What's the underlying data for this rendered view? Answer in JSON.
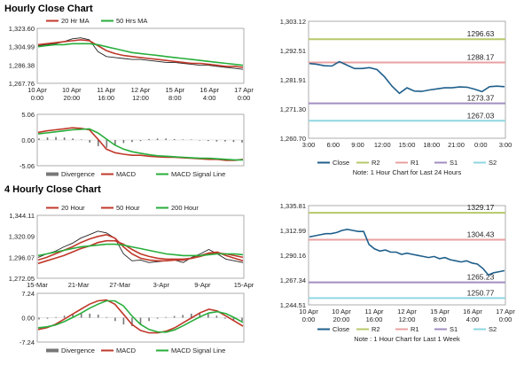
{
  "sections": {
    "hourly": "Hourly Close Chart",
    "four_hourly": "4 Hourly Close Chart"
  },
  "colors": {
    "close": "#1f5f8b",
    "ma20": "#c0392b",
    "ma50": "#27ae3b",
    "ma200": "#27ae3b",
    "r2": "#b5c96a",
    "r1": "#e8a0a0",
    "s1": "#a08ec0",
    "s2": "#8fd6e0",
    "macd": "#c0392b",
    "signal": "#27ae3b",
    "divergence": "#777777",
    "price": "#222222"
  },
  "chart_data": [
    {
      "id": "hourly-price",
      "type": "line",
      "x_ticks": [
        "10 Apr\n0:00",
        "10 Apr\n20:00",
        "11 Apr\n16:00",
        "12 Apr\n12:00",
        "15 Apr\n8:00",
        "16 Apr\n4:00",
        "17 Apr\n0:00"
      ],
      "ylim": [
        1267.76,
        1323.6
      ],
      "y_ticks": [
        "1,323.60",
        "1,304.99",
        "1,286.38",
        "1,267.76"
      ],
      "legend": [
        "20 Hr MA",
        "50 Hrs MA"
      ],
      "series": [
        {
          "name": "price",
          "values": [
            1306,
            1307,
            1308,
            1310,
            1313,
            1314,
            1312,
            1300,
            1295,
            1294,
            1293,
            1292,
            1292,
            1291,
            1290,
            1289,
            1289,
            1288,
            1287,
            1286,
            1286,
            1285,
            1284,
            1283,
            1282
          ]
        },
        {
          "name": "20 Hr MA",
          "values": [
            1307,
            1308,
            1309,
            1310,
            1311,
            1312,
            1311,
            1306,
            1301,
            1298,
            1296,
            1295,
            1294,
            1293,
            1292,
            1291,
            1290,
            1289,
            1288,
            1288,
            1287,
            1286,
            1285,
            1285,
            1284
          ]
        },
        {
          "name": "50 Hrs MA",
          "values": [
            1305,
            1306,
            1307,
            1307,
            1308,
            1308,
            1308,
            1307,
            1305,
            1303,
            1301,
            1299,
            1298,
            1297,
            1296,
            1295,
            1294,
            1293,
            1292,
            1291,
            1290,
            1289,
            1288,
            1287,
            1286
          ]
        }
      ]
    },
    {
      "id": "hourly-macd",
      "type": "line",
      "x_ticks": [
        "",
        "",
        "",
        "",
        "",
        "",
        ""
      ],
      "ylim": [
        -5.06,
        5.06
      ],
      "y_ticks": [
        "5.06",
        "0.00",
        "-5.06"
      ],
      "legend": [
        "Divergence",
        "MACD",
        "MACD Signal Line"
      ],
      "divergence": [
        0.3,
        0.5,
        0.6,
        0.5,
        0.3,
        0.1,
        -0.5,
        -1.2,
        -1.5,
        -1.0,
        -0.6,
        -0.4,
        -0.2,
        0.2,
        0.3,
        0.3,
        0.2,
        0.1,
        0.1,
        -0.1,
        -0.2,
        -0.3,
        -0.3,
        -0.4,
        -0.5
      ],
      "series": [
        {
          "name": "MACD",
          "values": [
            1.5,
            1.8,
            2.0,
            2.2,
            2.4,
            2.3,
            2.0,
            0.2,
            -1.8,
            -2.5,
            -2.8,
            -3.0,
            -3.0,
            -3.2,
            -3.3,
            -3.4,
            -3.4,
            -3.5,
            -3.6,
            -3.7,
            -3.8,
            -3.8,
            -4.0,
            -4.0,
            -3.8
          ]
        },
        {
          "name": "MACD Signal Line",
          "values": [
            1.2,
            1.4,
            1.6,
            1.8,
            2.0,
            2.1,
            2.2,
            1.4,
            0.2,
            -1.0,
            -1.8,
            -2.3,
            -2.6,
            -2.9,
            -3.1,
            -3.2,
            -3.3,
            -3.4,
            -3.5,
            -3.6,
            -3.6,
            -3.7,
            -3.8,
            -3.9,
            -3.9
          ]
        }
      ]
    },
    {
      "id": "hourly-levels",
      "type": "line",
      "x_ticks": [
        "3:00",
        "6:00",
        "9:00",
        "12:00",
        "15:00",
        "18:00",
        "21:00",
        "0:00",
        "3:00"
      ],
      "ylim": [
        1260.7,
        1303.12
      ],
      "y_ticks": [
        "1,303.12",
        "1,292.51",
        "1,281.91",
        "1,271.30",
        "1,260.70"
      ],
      "legend": [
        "Close",
        "R2",
        "R1",
        "S1",
        "S2"
      ],
      "levels": [
        {
          "name": "R2",
          "value": 1296.63,
          "label": "1296.63"
        },
        {
          "name": "R1",
          "value": 1288.17,
          "label": "1288.17"
        },
        {
          "name": "S1",
          "value": 1273.37,
          "label": "1273.37"
        },
        {
          "name": "S2",
          "value": 1267.03,
          "label": "1267.03"
        }
      ],
      "series": [
        {
          "name": "Close",
          "values": [
            1287.8,
            1287.5,
            1287.0,
            1286.9,
            1288.5,
            1287.2,
            1286.0,
            1286.0,
            1286.3,
            1285.6,
            1283.0,
            1279.6,
            1277.0,
            1279.0,
            1277.8,
            1277.7,
            1278.2,
            1278.6,
            1279.0,
            1279.0,
            1279.3,
            1279.2,
            1278.5,
            1277.6,
            1279.4,
            1279.6,
            1279.4
          ]
        }
      ],
      "note": "Note: 1 Hour Chart for Last 24 Hours"
    },
    {
      "id": "four-hourly-price",
      "type": "line",
      "x_ticks": [
        "15-Mar",
        "21-Mar",
        "27-Mar",
        "3-Apr",
        "9-Apr",
        "15-Apr"
      ],
      "ylim": [
        1272.05,
        1344.11
      ],
      "y_ticks": [
        "1,344.11",
        "1,320.09",
        "1,296.07",
        "1,272.05"
      ],
      "legend": [
        "20 Hour",
        "50 Hour",
        "200 Hour"
      ],
      "series": [
        {
          "name": "price",
          "values": [
            1296,
            1300,
            1303,
            1308,
            1312,
            1318,
            1322,
            1326,
            1324,
            1318,
            1300,
            1292,
            1293,
            1290,
            1291,
            1292,
            1293,
            1290,
            1296,
            1300,
            1305,
            1300,
            1294,
            1292,
            1290
          ]
        },
        {
          "name": "20 Hour",
          "values": [
            1293,
            1296,
            1300,
            1304,
            1308,
            1313,
            1317,
            1320,
            1322,
            1318,
            1308,
            1300,
            1295,
            1293,
            1292,
            1292,
            1293,
            1293,
            1295,
            1298,
            1301,
            1302,
            1298,
            1295,
            1292
          ]
        },
        {
          "name": "50 Hour",
          "values": [
            1289,
            1292,
            1295,
            1298,
            1302,
            1306,
            1309,
            1313,
            1315,
            1315,
            1311,
            1305,
            1300,
            1297,
            1295,
            1294,
            1294,
            1294,
            1295,
            1297,
            1300,
            1301,
            1300,
            1298,
            1296
          ]
        },
        {
          "name": "200 Hour",
          "values": [
            1298,
            1300,
            1302,
            1304,
            1306,
            1308,
            1309,
            1310,
            1311,
            1311,
            1310,
            1308,
            1306,
            1304,
            1302,
            1300,
            1299,
            1298,
            1298,
            1298,
            1299,
            1300,
            1300,
            1300,
            1299
          ]
        }
      ]
    },
    {
      "id": "four-hourly-macd",
      "type": "line",
      "x_ticks": [
        "",
        "",
        "",
        "",
        "",
        ""
      ],
      "ylim": [
        -7.24,
        7.24
      ],
      "y_ticks": [
        "7.24",
        "0.00",
        "-7.24"
      ],
      "legend": [
        "Divergence",
        "MACD",
        "MACD Signal Line"
      ],
      "divergence": [
        -0.5,
        -0.3,
        0.2,
        0.6,
        1.0,
        1.3,
        1.2,
        0.9,
        0.2,
        -1.0,
        -2.0,
        -2.5,
        -2.0,
        -1.0,
        -0.3,
        0.2,
        0.5,
        0.8,
        1.2,
        1.5,
        1.3,
        0.6,
        -0.3,
        -0.8,
        -1.0
      ],
      "series": [
        {
          "name": "MACD",
          "values": [
            -3.5,
            -3.0,
            -2.0,
            -0.5,
            1.0,
            2.5,
            4.0,
            5.0,
            5.3,
            4.0,
            1.0,
            -2.0,
            -3.8,
            -4.5,
            -4.5,
            -4.0,
            -3.0,
            -1.5,
            0.0,
            1.5,
            2.5,
            2.0,
            0.5,
            -1.0,
            -2.5
          ]
        },
        {
          "name": "MACD Signal Line",
          "values": [
            -3.0,
            -2.7,
            -2.2,
            -1.2,
            0.0,
            1.3,
            2.8,
            4.0,
            5.0,
            5.0,
            3.5,
            0.5,
            -2.0,
            -3.5,
            -4.2,
            -4.3,
            -3.6,
            -2.4,
            -1.0,
            0.3,
            1.4,
            1.8,
            1.2,
            0.0,
            -1.4
          ]
        }
      ]
    },
    {
      "id": "four-hourly-levels",
      "type": "line",
      "x_ticks": [
        "10 Apr\n0:00",
        "10 Apr\n20:00",
        "11 Apr\n16:00",
        "12 Apr\n12:00",
        "15 Apr\n8:00",
        "16 Apr\n4:00",
        "17 Apr\n0:00"
      ],
      "ylim": [
        1244.51,
        1335.81
      ],
      "y_ticks": [
        "1,335.81",
        "1,312.99",
        "1,290.16",
        "1,267.34",
        "1,244.51"
      ],
      "legend": [
        "Close",
        "R2",
        "R1",
        "S1",
        "S2"
      ],
      "levels": [
        {
          "name": "R2",
          "value": 1329.17,
          "label": "1329.17"
        },
        {
          "name": "R1",
          "value": 1304.43,
          "label": "1304.43"
        },
        {
          "name": "S1",
          "value": 1265.23,
          "label": "1265.23"
        },
        {
          "name": "S2",
          "value": 1250.77,
          "label": "1250.77"
        }
      ],
      "series": [
        {
          "name": "Close",
          "values": [
            1307,
            1308,
            1309,
            1310,
            1310,
            1311,
            1313,
            1314,
            1313,
            1312,
            1312,
            1300,
            1296,
            1294,
            1295,
            1293,
            1293,
            1291,
            1292,
            1291,
            1290,
            1289,
            1288,
            1289,
            1287,
            1288,
            1286,
            1285,
            1284,
            1285,
            1283,
            1282,
            1278,
            1272,
            1274,
            1275,
            1276
          ]
        }
      ],
      "note": "Note : 1 Hour Chart for Last 1 Week"
    }
  ]
}
